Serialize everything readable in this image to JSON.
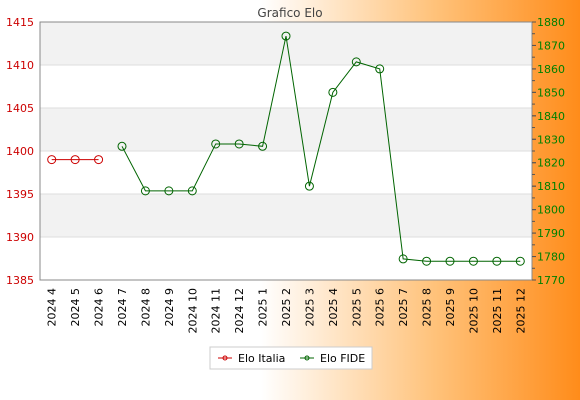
{
  "chart_data": {
    "type": "line",
    "title": "Grafico Elo",
    "categories": [
      "2024 4",
      "2024 5",
      "2024 6",
      "2024 7",
      "2024 8",
      "2024 9",
      "2024 10",
      "2024 11",
      "2024 12",
      "2025 1",
      "2025 2",
      "2025 3",
      "2025 4",
      "2025 5",
      "2025 6",
      "2025 7",
      "2025 8",
      "2025 9",
      "2025 10",
      "2025 11",
      "2025 12"
    ],
    "y_left": {
      "min": 1385,
      "max": 1415,
      "ticks": [
        1385,
        1390,
        1395,
        1400,
        1405,
        1410,
        1415
      ],
      "color": "#cc0000"
    },
    "y_right": {
      "min": 1770,
      "max": 1880,
      "ticks": [
        1770,
        1780,
        1790,
        1800,
        1810,
        1820,
        1830,
        1840,
        1850,
        1860,
        1870,
        1880
      ],
      "color": "#008000"
    },
    "series": [
      {
        "name": "Elo Italia",
        "axis": "left",
        "color": "#cc0000",
        "values": [
          1399,
          1399,
          1399,
          null,
          null,
          null,
          null,
          null,
          null,
          null,
          null,
          null,
          null,
          null,
          null,
          null,
          null,
          null,
          null,
          null,
          null
        ]
      },
      {
        "name": "Elo FIDE",
        "axis": "right",
        "color": "#006400",
        "values": [
          null,
          null,
          null,
          1827,
          1808,
          1808,
          1808,
          1828,
          1828,
          1827,
          1874,
          1810,
          1850,
          1863,
          1860,
          1779,
          1778,
          1778,
          1778,
          1778,
          1778
        ]
      }
    ],
    "grid": true,
    "legend_position": "bottom"
  }
}
